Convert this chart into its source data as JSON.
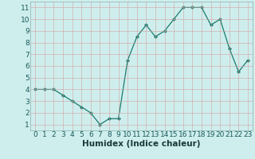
{
  "x": [
    0,
    1,
    2,
    3,
    4,
    5,
    6,
    7,
    8,
    9,
    10,
    11,
    12,
    13,
    14,
    15,
    16,
    17,
    18,
    19,
    20,
    21,
    22,
    23
  ],
  "y": [
    4.0,
    4.0,
    4.0,
    3.5,
    3.0,
    2.5,
    2.0,
    1.0,
    1.5,
    1.5,
    6.5,
    8.5,
    9.5,
    8.5,
    9.0,
    10.0,
    11.0,
    11.0,
    11.0,
    9.5,
    10.0,
    7.5,
    5.5,
    6.5
  ],
  "line_color": "#1a7a6e",
  "marker_color": "#1a7a6e",
  "bg_color": "#ceeeed",
  "grid_color": "#b8dedc",
  "xlabel": "Humidex (Indice chaleur)",
  "xlim": [
    -0.5,
    23.5
  ],
  "ylim": [
    0.5,
    11.5
  ],
  "yticks": [
    1,
    2,
    3,
    4,
    5,
    6,
    7,
    8,
    9,
    10,
    11
  ],
  "xticks": [
    0,
    1,
    2,
    3,
    4,
    5,
    6,
    7,
    8,
    9,
    10,
    11,
    12,
    13,
    14,
    15,
    16,
    17,
    18,
    19,
    20,
    21,
    22,
    23
  ],
  "tick_label_color": "#1a5a5a",
  "xlabel_color": "#1a3a3a",
  "font_size_tick": 6.5,
  "font_size_label": 7.5
}
